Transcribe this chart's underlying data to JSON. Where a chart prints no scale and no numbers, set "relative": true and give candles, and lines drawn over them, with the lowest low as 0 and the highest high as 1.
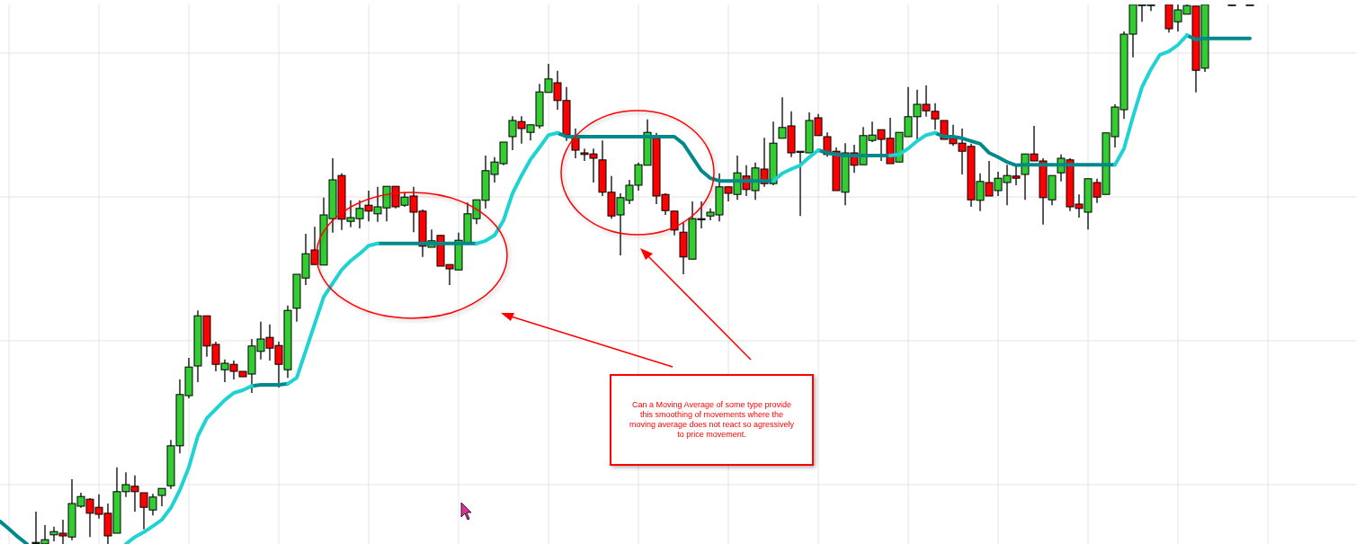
{
  "chart_data": {
    "type": "candlestick",
    "relative": true,
    "grid": true,
    "categories": [
      null,
      null,
      null,
      null,
      null,
      null,
      null,
      null,
      null,
      null,
      null,
      null,
      null,
      null,
      null,
      null,
      null,
      null,
      null,
      null,
      null,
      null,
      null,
      null,
      null,
      null,
      null,
      null,
      null,
      null,
      null,
      null,
      null,
      null,
      null,
      null,
      null,
      null,
      null,
      null,
      null,
      null,
      null,
      null,
      null,
      null,
      null,
      null,
      null,
      null,
      null,
      null,
      null,
      null,
      null,
      null,
      null,
      null,
      null,
      null,
      null,
      null,
      null,
      null,
      null,
      null,
      null,
      null,
      null,
      null,
      null,
      null,
      null,
      null,
      null,
      null,
      null,
      null,
      null,
      null,
      null,
      null,
      null,
      null,
      null,
      null,
      null,
      null,
      null,
      null,
      null,
      null,
      null,
      null,
      null,
      null,
      null,
      null,
      null,
      null,
      null,
      null,
      null,
      null,
      null,
      null,
      null,
      null,
      null,
      null,
      null,
      null,
      null,
      null,
      null,
      null,
      null,
      null,
      null,
      null,
      null,
      null,
      null,
      null,
      null,
      null,
      null,
      null,
      null,
      null,
      null,
      null,
      null,
      null,
      null,
      null,
      null,
      null,
      null,
      null
    ],
    "ohlc": [
      null,
      null,
      null,
      null,
      [
        0.002,
        0.06,
        0,
        0.003
      ],
      [
        0,
        0.035,
        0,
        0.008
      ],
      [
        0.017,
        0.032,
        0.005,
        0.023
      ],
      [
        0.02,
        0.045,
        0,
        0.015
      ],
      [
        0.013,
        0.12,
        0.007,
        0.075
      ],
      [
        0.07,
        0.095,
        0.067,
        0.088
      ],
      [
        0.083,
        0.085,
        0.013,
        0.057
      ],
      [
        0.068,
        0.092,
        0.047,
        0.055
      ],
      [
        0.057,
        0.075,
        0,
        0.015
      ],
      [
        0.02,
        0.142,
        0.02,
        0.097
      ],
      [
        0.097,
        0.133,
        0.087,
        0.11
      ],
      [
        0.107,
        0.127,
        0.06,
        0.097
      ],
      [
        0.095,
        0.095,
        0.027,
        0.068
      ],
      [
        0.063,
        0.093,
        0.053,
        0.087
      ],
      [
        0.09,
        0.103,
        0.07,
        0.103
      ],
      [
        0.108,
        0.193,
        0.102,
        0.182
      ],
      [
        0.182,
        0.305,
        0.168,
        0.277
      ],
      [
        0.275,
        0.345,
        0.27,
        0.328
      ],
      [
        0.33,
        0.433,
        0.3,
        0.423
      ],
      [
        0.423,
        0.423,
        0.347,
        0.367
      ],
      [
        0.37,
        0.375,
        0.32,
        0.333
      ],
      [
        0.323,
        0.342,
        0.3,
        0.335
      ],
      [
        0.333,
        0.34,
        0.305,
        0.32
      ],
      [
        0.32,
        0.32,
        0.31,
        0.31
      ],
      [
        0.315,
        0.38,
        0.28,
        0.367
      ],
      [
        0.357,
        0.412,
        0.342,
        0.38
      ],
      [
        0.383,
        0.407,
        0.34,
        0.363
      ],
      [
        0.368,
        0.375,
        0.29,
        0.333
      ],
      [
        0.323,
        0.442,
        0.308,
        0.433
      ],
      [
        0.437,
        0.5,
        0.412,
        0.5
      ],
      [
        0.493,
        0.575,
        0.48,
        0.538
      ],
      [
        0.545,
        0.588,
        0.518,
        0.518
      ],
      [
        0.517,
        0.642,
        0.517,
        0.61
      ],
      [
        0.603,
        0.715,
        0.577,
        0.675
      ],
      [
        0.683,
        0.687,
        0.582,
        0.602
      ],
      [
        0.598,
        0.637,
        0.587,
        0.605
      ],
      [
        0.603,
        0.637,
        0.585,
        0.622
      ],
      [
        0.628,
        0.655,
        0.598,
        0.617
      ],
      [
        0.612,
        0.662,
        0.597,
        0.625
      ],
      [
        0.623,
        0.663,
        0.598,
        0.663
      ],
      [
        0.663,
        0.663,
        0.622,
        0.625
      ],
      [
        0.628,
        0.652,
        0.625,
        0.643
      ],
      [
        0.645,
        0.662,
        0.578,
        0.615
      ],
      [
        0.617,
        0.62,
        0.532,
        0.552
      ],
      [
        0.55,
        0.583,
        0.55,
        0.562
      ],
      [
        0.572,
        0.572,
        0.515,
        0.515
      ],
      [
        0.518,
        0.518,
        0.48,
        0.51
      ],
      [
        0.508,
        0.577,
        0.508,
        0.563
      ],
      [
        0.558,
        0.633,
        0.558,
        0.612
      ],
      [
        0.603,
        0.638,
        0.593,
        0.638
      ],
      [
        0.637,
        0.72,
        0.622,
        0.692
      ],
      [
        0.685,
        0.717,
        0.67,
        0.708
      ],
      [
        0.705,
        0.745,
        0.702,
        0.745
      ],
      [
        0.755,
        0.793,
        0.73,
        0.785
      ],
      [
        0.783,
        0.793,
        0.742,
        0.77
      ],
      [
        0.763,
        0.777,
        0.748,
        0.777
      ],
      [
        0.775,
        0.853,
        0.77,
        0.838
      ],
      [
        0.837,
        0.89,
        0.837,
        0.862
      ],
      [
        0.855,
        0.877,
        0.805,
        0.822
      ],
      [
        0.822,
        0.847,
        0.747,
        0.758
      ],
      [
        0.755,
        0.77,
        0.715,
        0.73
      ],
      [
        0.725,
        0.733,
        0.71,
        0.722
      ],
      [
        0.723,
        0.733,
        0.67,
        0.715
      ],
      [
        0.712,
        0.748,
        0.645,
        0.652
      ],
      [
        0.652,
        0.682,
        0.603,
        0.608
      ],
      [
        0.61,
        0.65,
        0.535,
        0.642
      ],
      [
        0.637,
        0.675,
        0.63,
        0.665
      ],
      [
        0.665,
        0.707,
        0.655,
        0.703
      ],
      [
        0.702,
        0.787,
        0.702,
        0.763
      ],
      [
        0.752,
        0.762,
        0.63,
        0.645
      ],
      [
        0.648,
        0.65,
        0.61,
        0.618
      ],
      [
        0.617,
        0.617,
        0.572,
        0.582
      ],
      [
        0.578,
        0.595,
        0.5,
        0.532
      ],
      [
        0.528,
        0.635,
        0.528,
        0.603
      ],
      [
        0.603,
        0.635,
        0.585,
        0.603
      ],
      [
        0.608,
        0.622,
        0.6,
        0.615
      ],
      [
        0.61,
        0.687,
        0.598,
        0.662
      ],
      [
        0.662,
        0.662,
        0.635,
        0.65
      ],
      [
        0.648,
        0.72,
        0.638,
        0.688
      ],
      [
        0.682,
        0.702,
        0.645,
        0.657
      ],
      [
        0.655,
        0.707,
        0.638,
        0.697
      ],
      [
        0.695,
        0.753,
        0.662,
        0.668
      ],
      [
        0.668,
        0.783,
        0.665,
        0.743
      ],
      [
        0.752,
        0.828,
        0.752,
        0.772
      ],
      [
        0.775,
        0.802,
        0.717,
        0.725
      ],
      [
        0.728,
        0.728,
        0.608,
        0.728
      ],
      [
        0.725,
        0.8,
        0.725,
        0.785
      ],
      [
        0.79,
        0.797,
        0.757,
        0.757
      ],
      [
        0.755,
        0.763,
        0.718,
        0.722
      ],
      [
        0.728,
        0.735,
        0.655,
        0.655
      ],
      [
        0.652,
        0.743,
        0.628,
        0.725
      ],
      [
        0.725,
        0.74,
        0.688,
        0.702
      ],
      [
        0.703,
        0.773,
        0.703,
        0.757
      ],
      [
        0.748,
        0.783,
        0.745,
        0.758
      ],
      [
        0.768,
        0.768,
        0.71,
        0.75
      ],
      [
        0.752,
        0.79,
        0.705,
        0.705
      ],
      [
        0.708,
        0.763,
        0.708,
        0.763
      ],
      [
        0.755,
        0.847,
        0.755,
        0.792
      ],
      [
        0.792,
        0.842,
        0.748,
        0.815
      ],
      [
        0.815,
        0.85,
        0.792,
        0.803
      ],
      [
        0.802,
        0.817,
        0.768,
        0.788
      ],
      [
        0.785,
        0.785,
        0.75,
        0.75
      ],
      [
        0.752,
        0.777,
        0.738,
        0.742
      ],
      [
        0.743,
        0.77,
        0.685,
        0.728
      ],
      [
        0.737,
        0.742,
        0.625,
        0.638
      ],
      [
        0.637,
        0.687,
        0.617,
        0.672
      ],
      [
        0.67,
        0.71,
        0.645,
        0.645
      ],
      [
        0.655,
        0.69,
        0.645,
        0.678
      ],
      [
        0.67,
        0.703,
        0.628,
        0.683
      ],
      [
        0.682,
        0.702,
        0.665,
        0.678
      ],
      [
        0.685,
        0.723,
        0.638,
        0.723
      ],
      [
        0.723,
        0.775,
        0.71,
        0.71
      ],
      [
        0.71,
        0.715,
        0.592,
        0.642
      ],
      [
        0.638,
        0.683,
        0.628,
        0.683
      ],
      [
        0.688,
        0.722,
        0.672,
        0.715
      ],
      [
        0.712,
        0.715,
        0.617,
        0.625
      ],
      [
        0.63,
        0.648,
        0.605,
        0.622
      ],
      [
        0.615,
        0.677,
        0.583,
        0.677
      ],
      [
        0.67,
        0.677,
        0.632,
        0.643
      ],
      [
        0.648,
        0.762,
        0.648,
        0.762
      ],
      [
        0.755,
        0.815,
        0.735,
        0.81
      ],
      [
        0.805,
        0.95,
        0.788,
        0.945
      ],
      [
        0.945,
        1,
        0.902,
        1
      ],
      [
        1,
        1,
        0.968,
        1
      ],
      [
        1,
        1,
        0.988,
        1
      ],
      null,
      [
        1,
        1,
        0.948,
        0.955
      ],
      [
        0.968,
        1,
        0.95,
        0.99
      ],
      [
        0.982,
        1,
        0.982,
        0.998
      ],
      [
        0.997,
        0.997,
        0.837,
        0.878
      ],
      [
        0.882,
        1,
        0.875,
        1
      ],
      null,
      null,
      [
        1,
        1,
        0.997,
        1
      ],
      null,
      [
        1,
        1,
        0.998,
        1
      ]
    ],
    "colors": [
      null,
      null,
      null,
      null,
      "#33cc33",
      "#33cc33",
      "#33cc33",
      "#ff0000",
      "#33cc33",
      "#33cc33",
      "#ff0000",
      "#ff0000",
      "#ff0000",
      "#33cc33",
      "#33cc33",
      "#ff0000",
      "#ff0000",
      "#33cc33",
      "#33cc33",
      "#33cc33",
      "#33cc33",
      "#33cc33",
      "#33cc33",
      "#ff0000",
      "#ff0000",
      "#33cc33",
      "#ff0000",
      "#ff0000",
      "#33cc33",
      "#33cc33",
      "#ff0000",
      "#ff0000",
      "#33cc33",
      "#33cc33",
      "#33cc33",
      "#ff0000",
      "#33cc33",
      "#33cc33",
      "#ff0000",
      "#33cc33",
      "#33cc33",
      "#ff0000",
      "#33cc33",
      "#33cc33",
      "#ff0000",
      "#33cc33",
      "#ff0000",
      "#ff0000",
      "#33cc33",
      "#ff0000",
      "#ff0000",
      "#33cc33",
      "#33cc33",
      "#33cc33",
      "#33cc33",
      "#33cc33",
      "#33cc33",
      "#33cc33",
      "#ff0000",
      "#33cc33",
      "#33cc33",
      "#33cc33",
      "#ff0000",
      "#ff0000",
      "#ff0000",
      "#ff0000",
      "#ff0000",
      "#ff0000",
      "#ff0000",
      "#33cc33",
      "#33cc33",
      "#33cc33",
      "#33cc33",
      "#ff0000",
      "#ff0000",
      "#ff0000",
      "#ff0000",
      "#33cc33",
      "#33cc33",
      "#33cc33",
      "#33cc33",
      "#ff0000",
      "#33cc33",
      "#ff0000",
      "#33cc33",
      "#ff0000",
      "#33cc33",
      "#33cc33",
      "#ff0000",
      "#33cc33",
      "#33cc33",
      "#ff0000",
      "#ff0000",
      "#ff0000",
      "#33cc33",
      "#ff0000",
      "#33cc33",
      "#33cc33",
      "#ff0000",
      "#ff0000",
      "#33cc33",
      "#33cc33",
      "#33cc33",
      "#ff0000",
      "#ff0000",
      "#ff0000",
      "#ff0000",
      "#ff0000",
      "#ff0000",
      "#33cc33",
      "#ff0000",
      "#33cc33",
      "#33cc33",
      "#ff0000",
      "#33cc33",
      "#ff0000",
      "#ff0000",
      "#33cc33",
      "#33cc33",
      "#ff0000",
      "#ff0000",
      "#33cc33",
      "#ff0000",
      "#33cc33",
      "#33cc33",
      "#33cc33",
      "#33cc33",
      "#33cc33",
      "#33cc33",
      null,
      "#ff0000",
      "#33cc33",
      "#33cc33",
      "#ff0000",
      "#33cc33",
      null,
      null,
      "#33cc33",
      null,
      "#33cc33"
    ],
    "series": [
      {
        "type": "line",
        "color": "#00898a",
        "values": [
          0.042,
          0.028,
          0.013,
          0,
          null,
          null,
          null,
          null,
          null,
          null,
          null,
          null,
          null,
          null,
          null,
          null,
          null,
          null,
          null,
          null,
          null,
          null,
          null,
          null,
          null,
          null,
          null,
          null,
          0.293,
          0.295,
          0.295,
          0.295,
          0.297,
          null,
          null,
          null,
          null,
          null,
          null,
          null,
          null,
          null,
          0.557,
          0.557,
          0.557,
          0.557,
          0.557,
          0.557,
          0.557,
          0.557,
          0.557,
          0.557,
          0.557,
          0.557,
          null,
          null,
          null,
          null,
          null,
          null,
          null,
          null,
          0.762,
          0.755,
          0.755,
          0.755,
          0.755,
          0.755,
          0.755,
          0.755,
          0.755,
          0.755,
          0.755,
          0.755,
          0.755,
          0.755,
          0.742,
          0.717,
          0.692,
          0.678,
          0.673,
          0.673,
          0.673,
          0.673,
          0.673,
          0.673,
          0.673,
          null,
          null,
          null,
          null,
          0.73,
          0.725,
          0.722,
          0.72,
          0.72,
          0.72,
          0.72,
          0.72,
          0.72,
          null,
          null,
          null,
          null,
          0.762,
          0.755,
          0.755,
          0.752,
          0.747,
          0.742,
          0.725,
          0.717,
          0.708,
          0.702,
          0.703,
          0.703,
          0.703,
          0.703,
          0.703,
          0.703,
          0.703,
          0.703,
          0.703,
          0.703,
          0.703,
          null,
          null,
          null,
          null,
          null,
          null,
          null,
          0.943,
          0.935,
          0.937,
          0.937,
          0.937,
          0.937,
          0.937,
          0.937
        ]
      },
      {
        "type": "line",
        "color": "#1fd3d3",
        "values": [
          null,
          null,
          null,
          null,
          null,
          null,
          null,
          null,
          null,
          null,
          null,
          null,
          null,
          null,
          0,
          0.013,
          0.022,
          0.033,
          0.045,
          0.067,
          0.1,
          0.142,
          0.2,
          0.233,
          0.25,
          0.267,
          0.28,
          0.285,
          0.293,
          null,
          null,
          null,
          0.297,
          0.308,
          0.358,
          0.408,
          0.458,
          0.483,
          0.508,
          0.525,
          0.538,
          0.553,
          0.557,
          null,
          null,
          null,
          null,
          null,
          null,
          null,
          null,
          null,
          null,
          0.557,
          0.562,
          0.572,
          0.6,
          0.65,
          0.683,
          0.713,
          0.735,
          0.758,
          0.762,
          null,
          null,
          null,
          null,
          null,
          null,
          null,
          null,
          null,
          null,
          null,
          null,
          null,
          null,
          null,
          null,
          null,
          null,
          null,
          null,
          null,
          null,
          null,
          0.673,
          0.687,
          0.695,
          0.702,
          0.717,
          0.73,
          null,
          null,
          null,
          null,
          null,
          null,
          null,
          0.72,
          0.722,
          0.733,
          0.747,
          0.758,
          0.762,
          null,
          null,
          null,
          null,
          null,
          null,
          null,
          null,
          null,
          null,
          null,
          null,
          null,
          null,
          null,
          null,
          null,
          null,
          null,
          0.703,
          0.733,
          0.792,
          0.847,
          0.88,
          0.907,
          0.913,
          0.925,
          0.943,
          null,
          null,
          null,
          null,
          null,
          null,
          null
        ]
      }
    ],
    "annotations": [
      "Can a Moving Average of some type provide this smoothing of movements where the moving average does not react so agressively to price movement."
    ]
  }
}
